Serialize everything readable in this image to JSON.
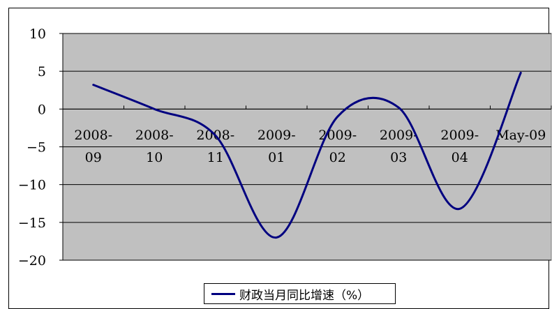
{
  "chart_data": {
    "type": "line",
    "categories": [
      "2008-09",
      "2008-10",
      "2008-11",
      "2009-01",
      "2009-02",
      "2009-03",
      "2009-04",
      "May-09"
    ],
    "category_lines": [
      [
        "2008-",
        "09"
      ],
      [
        "2008-",
        "10"
      ],
      [
        "2008-",
        "11"
      ],
      [
        "2009-",
        "01"
      ],
      [
        "2009-",
        "02"
      ],
      [
        "2009-",
        "03"
      ],
      [
        "2009-",
        "04"
      ],
      [
        "May-09",
        ""
      ]
    ],
    "series": [
      {
        "name": "财政当月同比增速（%）",
        "color": "#000080",
        "values": [
          3.2,
          0.0,
          -3.5,
          -17.0,
          -1.0,
          0.2,
          -13.2,
          4.8
        ]
      }
    ],
    "yticks": [
      10,
      5,
      0,
      -5,
      -10,
      -15,
      -20
    ],
    "ylim": [
      -20,
      10
    ],
    "grid": true,
    "plot_background": "#c0c0c0",
    "legend_position": "bottom"
  }
}
